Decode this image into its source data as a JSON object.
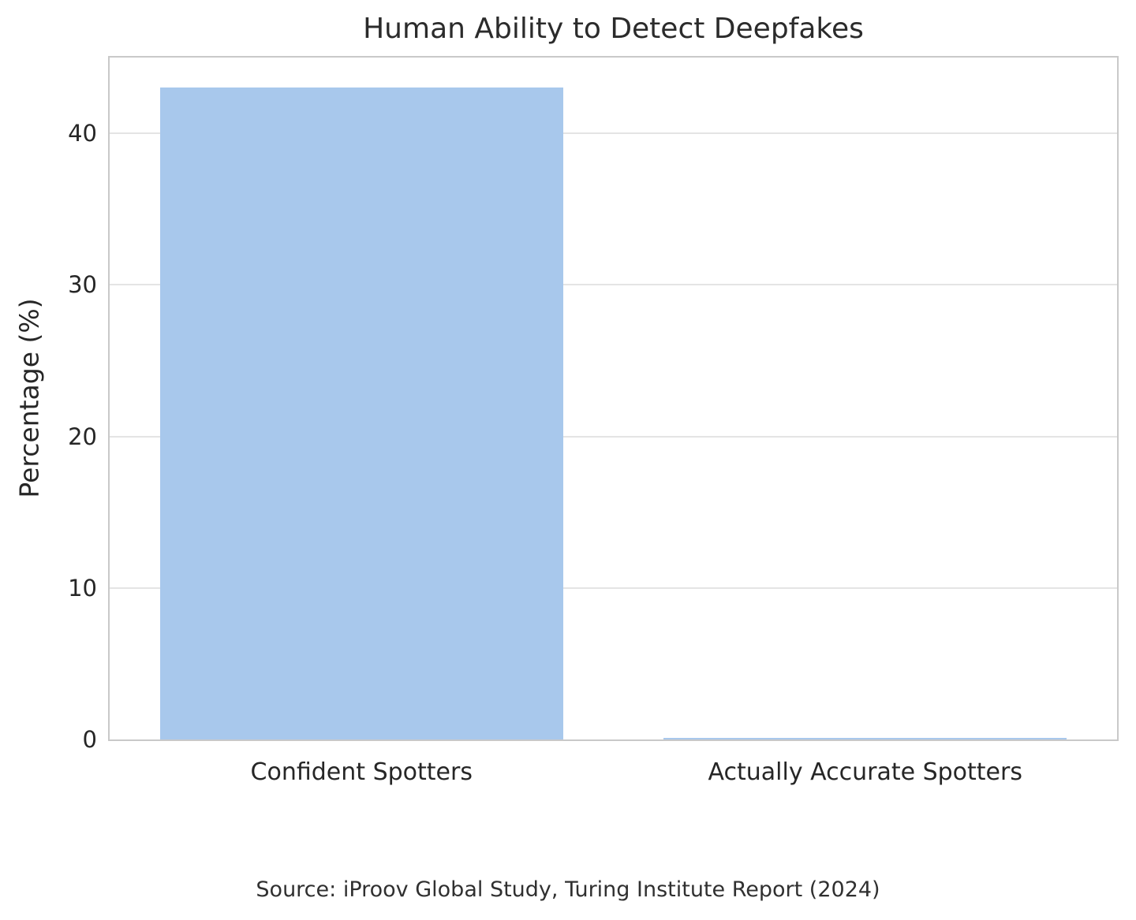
{
  "chart_data": {
    "type": "bar",
    "title": "Human Ability to Detect Deepfakes",
    "categories": [
      "Confident Spotters",
      "Actually Accurate Spotters"
    ],
    "values": [
      43,
      0.1
    ],
    "xlabel": "",
    "ylabel": "Percentage (%)",
    "ylim": [
      0,
      45
    ],
    "yticks": [
      0,
      10,
      20,
      30,
      40
    ],
    "grid": true,
    "legend": "none",
    "bar_color": "#a8c8ec",
    "bar_width_fraction": 0.8,
    "source_note": "Source: iProov Global Study, Turing Institute Report (2024)"
  }
}
